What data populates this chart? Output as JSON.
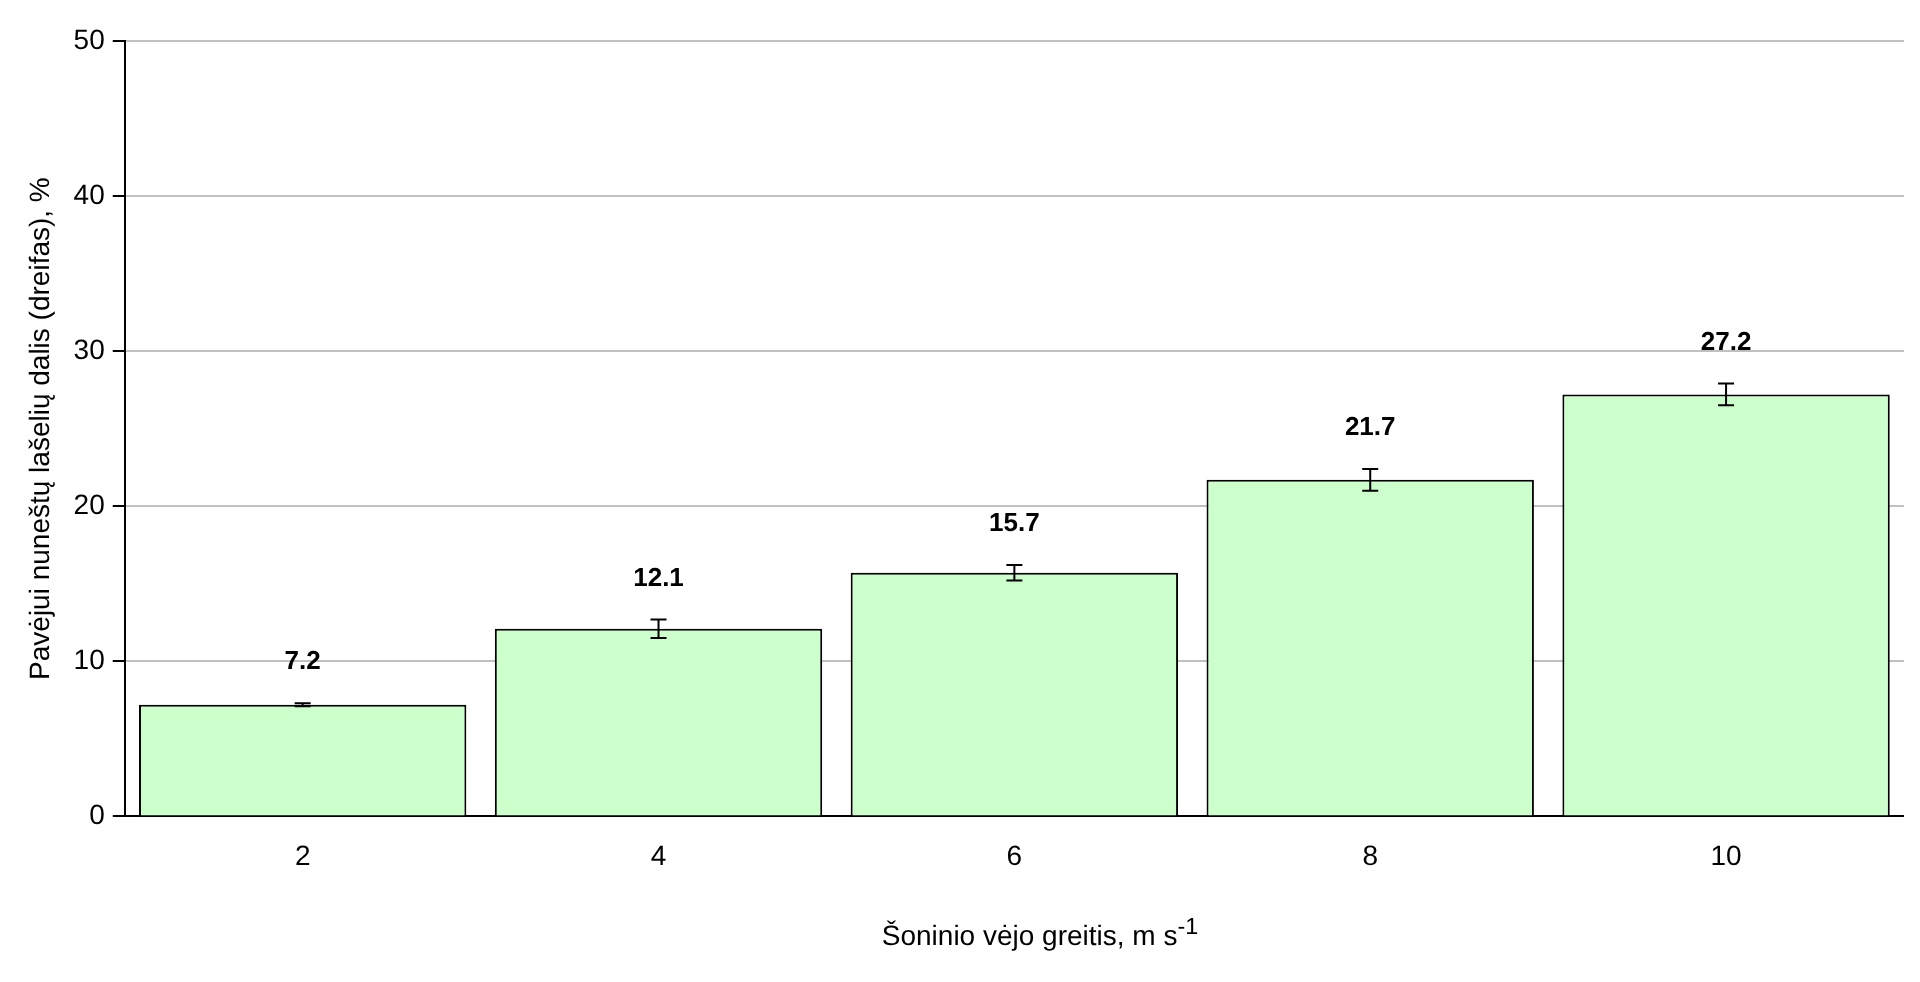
{
  "chart_data": {
    "type": "bar",
    "xlabel": "Šoninio vėjo greitis, m s$^{-1}$",
    "ylabel": "Pavėjui nuneštų lašelių dalis (dreifas), %",
    "categories": [
      "2",
      "4",
      "6",
      "8",
      "10"
    ],
    "values": [
      7.2,
      12.1,
      15.7,
      21.7,
      27.2
    ],
    "errors": [
      0.1,
      0.6,
      0.5,
      0.7,
      0.7
    ],
    "color": "#ccffcc",
    "ylim": [
      0,
      50
    ],
    "yticks": [
      0,
      10,
      20,
      30,
      40,
      50
    ],
    "grid": "y",
    "data_labels": true,
    "legend": false
  }
}
